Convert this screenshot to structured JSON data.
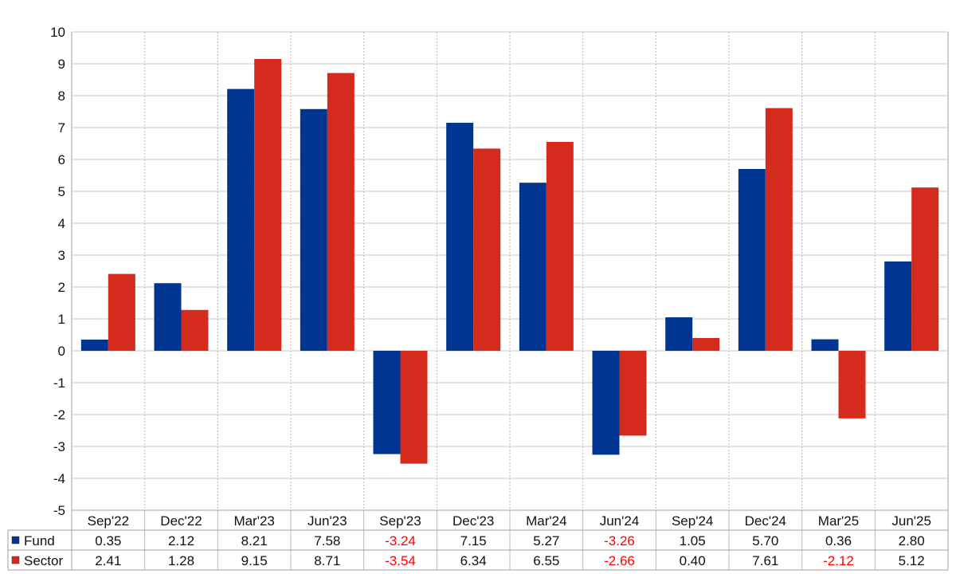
{
  "chart_data": {
    "type": "bar",
    "categories": [
      "Sep'22",
      "Dec'22",
      "Mar'23",
      "Jun'23",
      "Sep'23",
      "Dec'23",
      "Mar'24",
      "Jun'24",
      "Sep'24",
      "Dec'24",
      "Mar'25",
      "Jun'25"
    ],
    "series": [
      {
        "name": "Fund",
        "color": "#003592",
        "values": [
          0.35,
          2.12,
          8.21,
          7.58,
          -3.24,
          7.15,
          5.27,
          -3.26,
          1.05,
          5.7,
          0.36,
          2.8
        ],
        "labels": [
          "0.35",
          "2.12",
          "8.21",
          "7.58",
          "-3.24",
          "7.15",
          "5.27",
          "-3.26",
          "1.05",
          "5.70",
          "0.36",
          "2.80"
        ]
      },
      {
        "name": "Sector",
        "color": "#d52b1e",
        "values": [
          2.41,
          1.28,
          9.15,
          8.71,
          -3.54,
          6.34,
          6.55,
          -2.66,
          0.4,
          7.61,
          -2.12,
          5.12
        ],
        "labels": [
          "2.41",
          "1.28",
          "9.15",
          "8.71",
          "-3.54",
          "6.34",
          "6.55",
          "-2.66",
          "0.40",
          "7.61",
          "-2.12",
          "5.12"
        ]
      }
    ],
    "ylim": [
      -5,
      10
    ],
    "yticks": [
      "10",
      "9",
      "8",
      "7",
      "6",
      "5",
      "4",
      "3",
      "2",
      "1",
      "0",
      "-1",
      "-2",
      "-3",
      "-4",
      "-5"
    ],
    "grid": true,
    "negative_value_color": "#ff0000",
    "legend": "data table rows below the chart"
  }
}
